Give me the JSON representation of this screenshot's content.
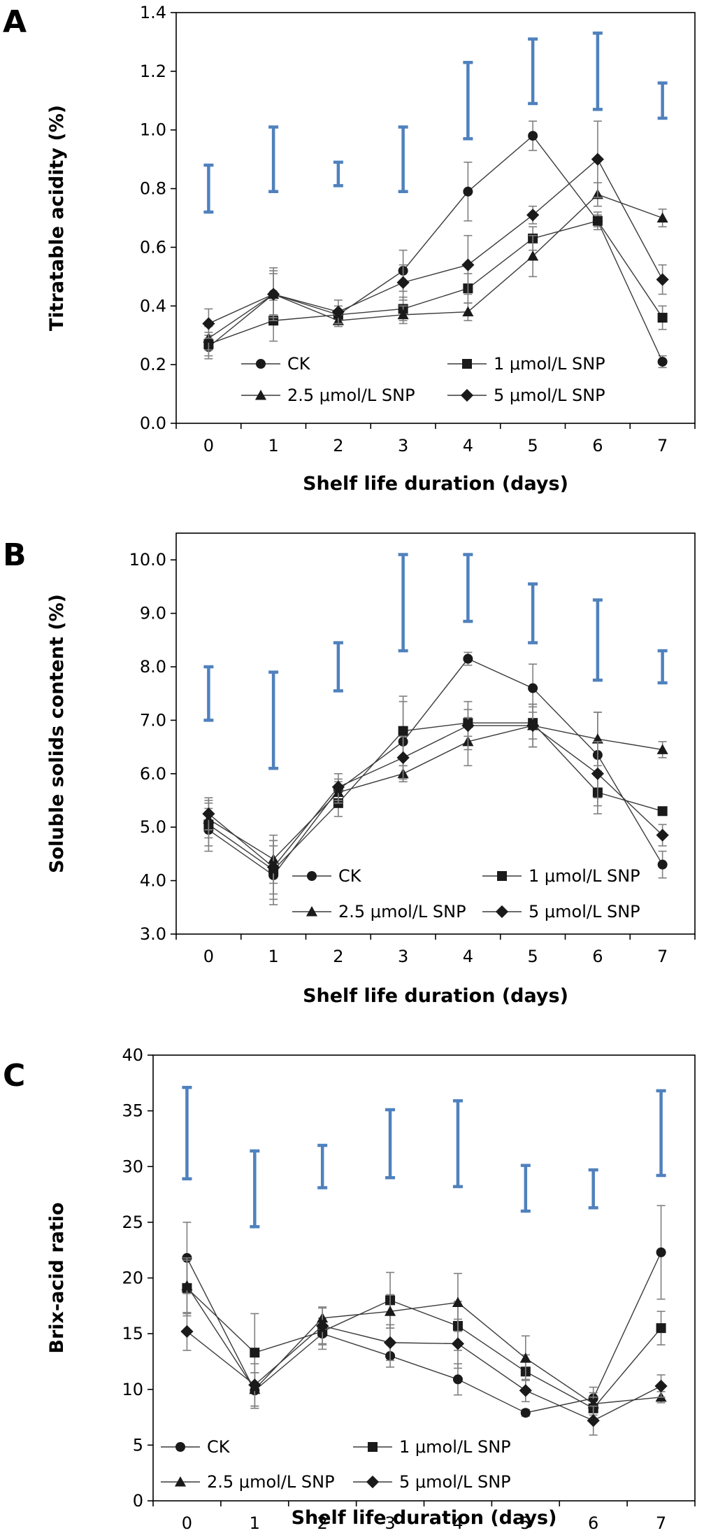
{
  "colors": {
    "series": "#1a1a1a",
    "error_bar": "#808080",
    "lsd_bar": "#4f81bd",
    "axis": "#000000"
  },
  "chart_data": [
    {
      "panel": "A",
      "type": "line",
      "xlabel": "Shelf life duration (days)",
      "ylabel": "Titratable acidity (%)",
      "x": [
        0,
        1,
        2,
        3,
        4,
        5,
        6,
        7
      ],
      "x_tick_labels": [
        "0",
        "1",
        "2",
        "3",
        "4",
        "5",
        "6",
        "7"
      ],
      "ylim": [
        0,
        1.4
      ],
      "y_ticks": [
        0,
        0.2,
        0.4,
        0.6,
        0.8,
        1.0,
        1.2,
        1.4
      ],
      "y_tick_labels": [
        "0.0",
        "0.2",
        "0.4",
        "0.6",
        "0.8",
        "1.0",
        "1.2",
        "1.4"
      ],
      "legend_position": "bottom-center",
      "series": [
        {
          "name": "CK",
          "marker": "circle",
          "values": [
            0.26,
            0.44,
            0.37,
            0.52,
            0.79,
            0.98,
            0.69,
            0.21
          ],
          "errors": [
            0.04,
            0.07,
            0.03,
            0.07,
            0.1,
            0.05,
            0.03,
            0.02
          ]
        },
        {
          "name": "1 μmol/L SNP",
          "marker": "square",
          "values": [
            0.27,
            0.35,
            0.37,
            0.39,
            0.46,
            0.63,
            0.69,
            0.36
          ],
          "errors": [
            0.04,
            0.07,
            0.03,
            0.04,
            0.05,
            0.04,
            0.02,
            0.04
          ]
        },
        {
          "name": "2.5 μmol/L SNP",
          "marker": "triangle",
          "values": [
            0.29,
            0.44,
            0.35,
            0.37,
            0.38,
            0.57,
            0.78,
            0.7
          ],
          "errors": [
            0.04,
            0.09,
            0.02,
            0.03,
            0.03,
            0.07,
            0.04,
            0.03
          ]
        },
        {
          "name": "5 μmol/L SNP",
          "marker": "diamond",
          "values": [
            0.34,
            0.44,
            0.38,
            0.48,
            0.54,
            0.71,
            0.9,
            0.49
          ],
          "errors": [
            0.05,
            0.08,
            0.04,
            0.06,
            0.1,
            0.03,
            0.13,
            0.05
          ]
        }
      ],
      "lsd_bars": [
        [
          0.72,
          0.88
        ],
        [
          0.79,
          1.01
        ],
        [
          0.81,
          0.89
        ],
        [
          0.79,
          1.01
        ],
        [
          0.97,
          1.23
        ],
        [
          1.09,
          1.31
        ],
        [
          1.07,
          1.33
        ],
        [
          1.04,
          1.16
        ]
      ]
    },
    {
      "panel": "B",
      "type": "line",
      "xlabel": "Shelf life duration (days)",
      "ylabel": "Soluble solids content (%)",
      "x": [
        0,
        1,
        2,
        3,
        4,
        5,
        6,
        7
      ],
      "x_tick_labels": [
        "0",
        "1",
        "2",
        "3",
        "4",
        "5",
        "6",
        "7"
      ],
      "ylim": [
        3,
        10.5
      ],
      "y_ticks": [
        3,
        4,
        5,
        6,
        7,
        8,
        9,
        10
      ],
      "y_tick_labels": [
        "3.0",
        "4.0",
        "5.0",
        "6.0",
        "7.0",
        "8.0",
        "9.0",
        "10.0"
      ],
      "legend_position": "bottom-center",
      "series": [
        {
          "name": "CK",
          "marker": "circle",
          "values": [
            4.95,
            4.1,
            5.7,
            6.6,
            8.15,
            7.6,
            6.35,
            4.3
          ],
          "errors": [
            0.4,
            0.55,
            0.2,
            0.75,
            0.12,
            0.45,
            0.8,
            0.25
          ]
        },
        {
          "name": "1 μmol/L SNP",
          "marker": "square",
          "values": [
            5.05,
            4.2,
            5.45,
            6.8,
            6.95,
            6.95,
            5.65,
            5.3
          ],
          "errors": [
            0.4,
            0.55,
            0.25,
            0.65,
            0.25,
            0.3,
            0.4,
            0.05
          ]
        },
        {
          "name": "2.5 μmol/L SNP",
          "marker": "triangle",
          "values": [
            5.15,
            4.4,
            5.65,
            6.0,
            6.6,
            6.9,
            6.65,
            6.45
          ],
          "errors": [
            0.35,
            0.45,
            0.2,
            0.15,
            0.45,
            0.4,
            0.5,
            0.15
          ]
        },
        {
          "name": "5 μmol/L SNP",
          "marker": "diamond",
          "values": [
            5.25,
            4.25,
            5.75,
            6.3,
            6.9,
            6.9,
            6.0,
            4.85
          ],
          "errors": [
            0.3,
            0.5,
            0.25,
            0.4,
            0.45,
            0.4,
            0.6,
            0.2
          ]
        }
      ],
      "lsd_bars": [
        [
          7.0,
          8.0
        ],
        [
          6.1,
          7.9
        ],
        [
          7.55,
          8.45
        ],
        [
          8.3,
          10.1
        ],
        [
          8.85,
          10.1
        ],
        [
          8.45,
          9.55
        ],
        [
          7.75,
          9.25
        ],
        [
          7.7,
          8.3
        ]
      ]
    },
    {
      "panel": "C",
      "type": "line",
      "xlabel": "Shelf life duration (days)",
      "ylabel": "Brix-acid ratio",
      "x": [
        0,
        1,
        2,
        3,
        4,
        5,
        6,
        7
      ],
      "x_tick_labels": [
        "0",
        "1",
        "2",
        "3",
        "4",
        "5",
        "6",
        "7"
      ],
      "ylim": [
        0,
        40
      ],
      "y_ticks": [
        0,
        5,
        10,
        15,
        20,
        25,
        30,
        35,
        40
      ],
      "y_tick_labels": [
        "0",
        "5",
        "10",
        "15",
        "20",
        "25",
        "30",
        "35",
        "40"
      ],
      "legend_position": "bottom-left",
      "series": [
        {
          "name": "CK",
          "marker": "circle",
          "values": [
            21.8,
            9.9,
            15.0,
            13.0,
            10.9,
            7.9,
            9.2,
            22.3
          ],
          "errors": [
            3.2,
            1.6,
            1.4,
            1.0,
            1.4,
            0.3,
            1.0,
            4.2
          ]
        },
        {
          "name": "1 μmol/L SNP",
          "marker": "square",
          "values": [
            19.1,
            13.3,
            15.2,
            18.0,
            15.7,
            11.6,
            8.3,
            15.5
          ],
          "errors": [
            2.5,
            3.5,
            1.2,
            2.5,
            2.2,
            1.5,
            1.0,
            1.5
          ]
        },
        {
          "name": "2.5 μmol/L SNP",
          "marker": "triangle",
          "values": [
            19.3,
            10.0,
            16.4,
            17.0,
            17.8,
            12.8,
            8.7,
            9.3
          ],
          "errors": [
            2.5,
            1.5,
            1.0,
            1.5,
            2.6,
            2.0,
            1.0,
            0.5
          ]
        },
        {
          "name": "5 μmol/L SNP",
          "marker": "diamond",
          "values": [
            15.2,
            10.4,
            15.7,
            14.2,
            14.1,
            9.9,
            7.2,
            10.3
          ],
          "errors": [
            1.7,
            1.9,
            1.6,
            1.6,
            2.2,
            1.0,
            1.3,
            1.0
          ]
        }
      ],
      "lsd_bars": [
        [
          28.9,
          37.1
        ],
        [
          24.6,
          31.4
        ],
        [
          28.1,
          31.9
        ],
        [
          29.0,
          35.1
        ],
        [
          28.2,
          35.9
        ],
        [
          26.0,
          30.1
        ],
        [
          26.3,
          29.7
        ],
        [
          29.2,
          36.8
        ]
      ]
    }
  ]
}
